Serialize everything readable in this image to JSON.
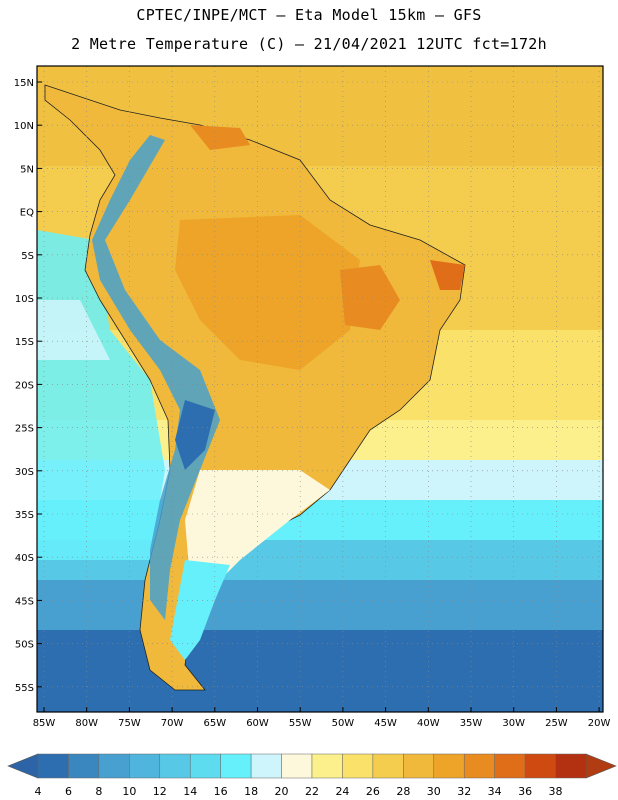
{
  "header": {
    "line1": "CPTEC/INPE/MCT –  Eta Model 15km – GFS",
    "line2": "2 Metre Temperature (C) – 21/04/2021 12UTC fct=172h"
  },
  "map": {
    "lat_ticks": [
      "15N",
      "10N",
      "5N",
      "EQ",
      "5S",
      "10S",
      "15S",
      "20S",
      "25S",
      "30S",
      "35S",
      "40S",
      "45S",
      "50S",
      "55S"
    ],
    "lon_ticks": [
      "85W",
      "80W",
      "75W",
      "70W",
      "65W",
      "60W",
      "55W",
      "50W",
      "45W",
      "40W",
      "35W",
      "30W",
      "25W",
      "20W"
    ]
  },
  "colorbar": {
    "labels": [
      "4",
      "6",
      "8",
      "10",
      "12",
      "14",
      "16",
      "18",
      "20",
      "22",
      "24",
      "26",
      "28",
      "30",
      "32",
      "34",
      "36",
      "38"
    ],
    "colors": [
      "#2d6eb0",
      "#3a86bf",
      "#47a0cf",
      "#4fb5dc",
      "#57c9e6",
      "#5ddbef",
      "#66f0fb",
      "#cdf5fb",
      "#fdf7dc",
      "#fbf08b",
      "#fae26a",
      "#f5cd4e",
      "#f0b93b",
      "#eda428",
      "#e88b20",
      "#e06d18",
      "#cf4a10",
      "#b33010"
    ],
    "low_color": "#2d64a8",
    "high_color": "#b13c12"
  }
}
